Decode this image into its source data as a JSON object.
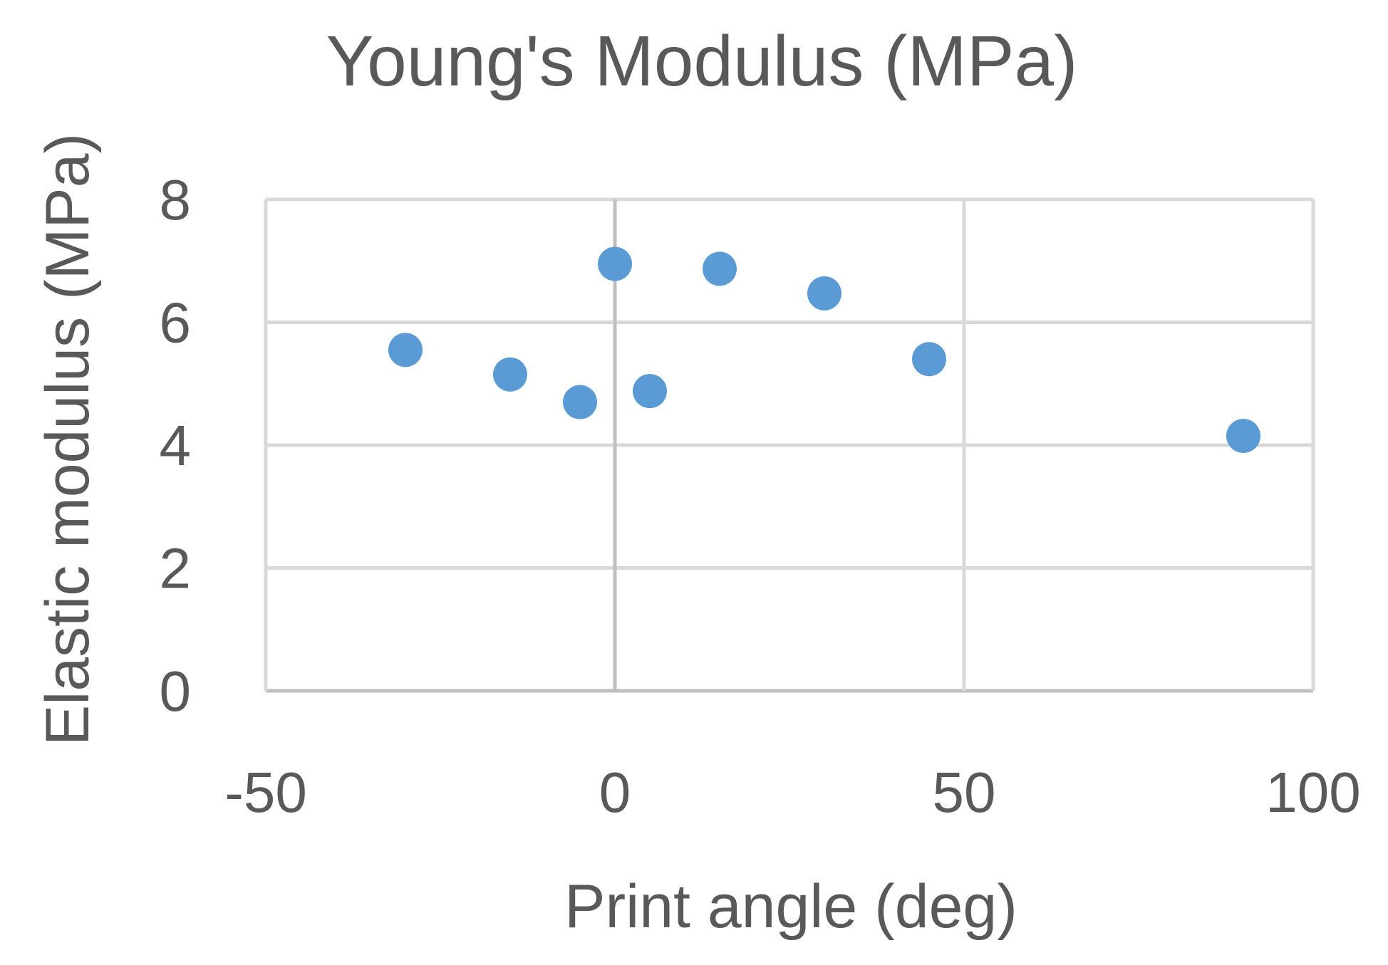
{
  "chart_data": {
    "type": "scatter",
    "title": "Young's Modulus (MPa)",
    "xlabel": "Print angle (deg)",
    "ylabel": "Elastic modulus (MPa)",
    "xlim": [
      -50,
      100
    ],
    "ylim": [
      0,
      8
    ],
    "x_ticks": [
      "-50",
      "0",
      "50",
      "100"
    ],
    "y_ticks": [
      "0",
      "2",
      "4",
      "6",
      "8"
    ],
    "x_tick_values": [
      -50,
      0,
      50,
      100
    ],
    "y_tick_values": [
      0,
      2,
      4,
      6,
      8
    ],
    "grid": true,
    "legend": "none",
    "series": [
      {
        "color": "#5b9bd5",
        "points": [
          {
            "x": -30,
            "y": 5.55
          },
          {
            "x": -15,
            "y": 5.15
          },
          {
            "x": -5,
            "y": 4.7
          },
          {
            "x": 0,
            "y": 6.95
          },
          {
            "x": 5,
            "y": 4.88
          },
          {
            "x": 15,
            "y": 6.87
          },
          {
            "x": 30,
            "y": 6.47
          },
          {
            "x": 45,
            "y": 5.4
          },
          {
            "x": 90,
            "y": 4.15
          }
        ]
      }
    ]
  }
}
